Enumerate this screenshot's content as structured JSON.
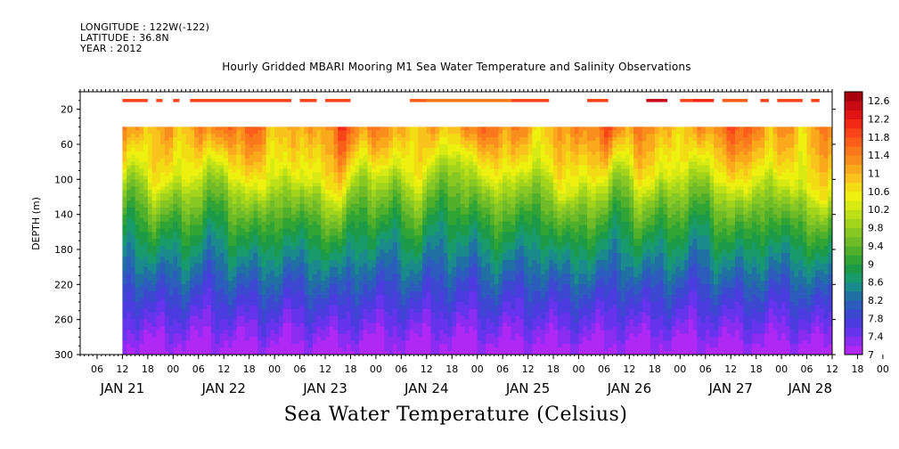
{
  "header": {
    "longitude": "LONGITUDE : 122W(-122)",
    "latitude": "LATITUDE : 36.8N",
    "year": "YEAR : 2012"
  },
  "chart_data": {
    "type": "heatmap",
    "title": "Hourly Gridded MBARI Mooring M1 Sea Water Temperature and Salinity Observations",
    "xlabel": "Sea Water Temperature (Celsius)",
    "ylabel": "DEPTH (m)",
    "x_hour_ticks": [
      "06",
      "12",
      "18",
      "00",
      "06",
      "12",
      "18",
      "00",
      "06",
      "12",
      "18",
      "00",
      "06",
      "12",
      "18",
      "00",
      "06",
      "12",
      "18",
      "00",
      "06",
      "12",
      "18",
      "00",
      "06",
      "12",
      "18",
      "00",
      "06",
      "12",
      "18",
      "00"
    ],
    "x_day_labels": [
      "JAN 21",
      "JAN 22",
      "JAN 23",
      "JAN 24",
      "JAN 25",
      "JAN 26",
      "JAN 27",
      "JAN 28"
    ],
    "x_range_hours_from_jan21_00": [
      2,
      180
    ],
    "y_range": [
      300,
      0
    ],
    "y_ticks": [
      20,
      60,
      100,
      140,
      180,
      220,
      260,
      300
    ],
    "colorbar_labels": [
      "12.6",
      "12.2",
      "11.8",
      "11.4",
      "11",
      "10.6",
      "10.2",
      "9.8",
      "9.4",
      "9",
      "8.6",
      "8.2",
      "7.8",
      "7.4",
      "7"
    ],
    "colorbar_range": [
      7,
      12.8
    ],
    "colorbar_step": 0.2,
    "colors": {
      "c12_6": "#a8000c",
      "c12_4": "#c80a14",
      "c12_2": "#e01414",
      "c12_0": "#f02814",
      "c11_8": "#f84418",
      "c11_6": "#fa5e1a",
      "c11_4": "#fa781c",
      "c11_2": "#fa8e1c",
      "c11_0": "#faa81c",
      "c10_8": "#fac21c",
      "c10_6": "#f2dc14",
      "c10_4": "#eef010",
      "c10_2": "#d8ea14",
      "c10_0": "#bce018",
      "c9_8": "#a2d41c",
      "c9_6": "#88c824",
      "c9_4": "#70bc28",
      "c9_2": "#50b02c",
      "c9_0": "#30a434",
      "c8_8": "#1c9a48",
      "c8_6": "#189a6c",
      "c8_4": "#1a8a8c",
      "c8_2": "#2070a4",
      "c8_0": "#2c5cbc",
      "c7_8": "#3c48d0",
      "c7_6": "#4c3ce0",
      "c7_4": "#6634ec",
      "c7_2": "#8a2cf2",
      "c7_0": "#b028f4"
    },
    "surface_row": {
      "depth": 10,
      "segments_hours_from_jan21_00": [
        [
          12,
          18,
          11.9
        ],
        [
          20,
          21.5,
          11.9
        ],
        [
          24,
          25.5,
          11.9
        ],
        [
          28,
          52,
          11.9
        ],
        [
          54,
          58,
          11.9
        ],
        [
          60,
          66,
          11.9
        ],
        [
          80,
          84,
          11.7
        ],
        [
          84,
          104,
          11.5
        ],
        [
          104,
          113,
          11.9
        ],
        [
          122,
          127,
          11.9
        ],
        [
          136,
          141,
          12.5
        ],
        [
          144,
          147,
          11.9
        ],
        [
          147,
          152,
          12.0
        ],
        [
          154,
          160,
          11.7
        ],
        [
          163,
          165,
          11.9
        ],
        [
          167,
          173,
          11.9
        ],
        [
          175,
          177,
          11.9
        ]
      ]
    },
    "profile_data_start_depth": 40,
    "profile_data_start_hour": 12
  }
}
